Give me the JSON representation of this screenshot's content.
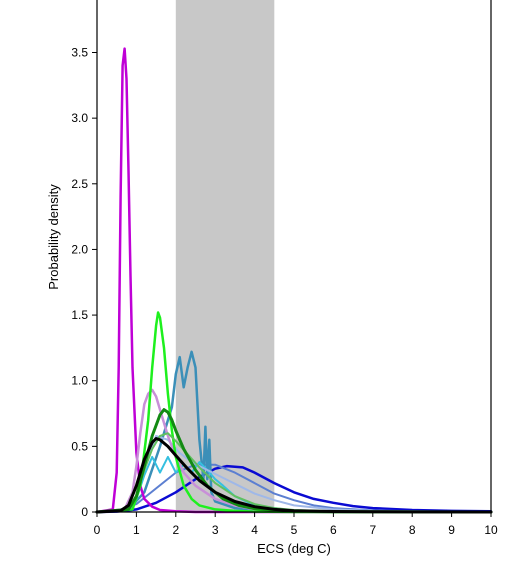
{
  "chart_data": {
    "type": "line",
    "title": "",
    "xlabel": "ECS (deg C)",
    "ylabel": "Probability density",
    "xlim": [
      0,
      10
    ],
    "ylim": [
      0,
      3.9
    ],
    "xticks": [
      "0",
      "1",
      "2",
      "3",
      "4",
      "5",
      "6",
      "7",
      "8",
      "9",
      "10"
    ],
    "yticks": [
      "0",
      "0.5",
      "1.0",
      "1.5",
      "2.0",
      "2.5",
      "3.0",
      "3.5"
    ],
    "grid": false,
    "legend": "none",
    "shaded_range": {
      "x0": 2.0,
      "x1": 4.5,
      "color": "#c8c8c8"
    },
    "series": [
      {
        "color": "#0a0ad2",
        "width": 2.5,
        "x": [
          0,
          0.5,
          1,
          1.5,
          2,
          2.5,
          3,
          3.3,
          3.7,
          4,
          4.5,
          5,
          5.5,
          6,
          6.5,
          7,
          8,
          9,
          10
        ],
        "y": [
          0,
          0.003,
          0.02,
          0.07,
          0.15,
          0.25,
          0.33,
          0.35,
          0.34,
          0.3,
          0.22,
          0.15,
          0.1,
          0.07,
          0.045,
          0.03,
          0.015,
          0.008,
          0.005
        ]
      },
      {
        "color": "#5c7fd1",
        "width": 2,
        "x": [
          0,
          0.5,
          1,
          1.5,
          2,
          2.5,
          3,
          3.5,
          4,
          4.5,
          5,
          5.5,
          6,
          7,
          8,
          9,
          10
        ],
        "y": [
          0,
          0.01,
          0.06,
          0.18,
          0.3,
          0.36,
          0.36,
          0.3,
          0.22,
          0.14,
          0.09,
          0.05,
          0.03,
          0.012,
          0.005,
          0.002,
          0.001
        ]
      },
      {
        "color": "#3b8fb8",
        "width": 2.5,
        "x": [
          0,
          0.8,
          1.2,
          1.6,
          1.9,
          2.0,
          2.1,
          2.2,
          2.3,
          2.4,
          2.5,
          2.6,
          2.7,
          2.75,
          2.8,
          2.85,
          2.9,
          3.0,
          3.5,
          4,
          5,
          6,
          10
        ],
        "y": [
          0,
          0.02,
          0.15,
          0.5,
          0.8,
          1.05,
          1.18,
          0.95,
          1.1,
          1.22,
          1.1,
          0.55,
          0.25,
          0.65,
          0.25,
          0.55,
          0.15,
          0.08,
          0.03,
          0.015,
          0.005,
          0.002,
          0
        ]
      },
      {
        "color": "#35c0e0",
        "width": 2,
        "x": [
          0,
          0.8,
          1.0,
          1.2,
          1.4,
          1.6,
          1.8,
          2.0,
          2.2,
          2.4,
          2.6,
          2.8,
          3.0,
          3.2,
          3.5,
          4,
          5,
          6,
          10
        ],
        "y": [
          0,
          0.02,
          0.1,
          0.28,
          0.42,
          0.3,
          0.42,
          0.3,
          0.36,
          0.3,
          0.38,
          0.32,
          0.25,
          0.2,
          0.12,
          0.05,
          0.01,
          0.003,
          0
        ]
      },
      {
        "color": "#9fb8e8",
        "width": 2,
        "x": [
          0,
          0.8,
          1.0,
          1.2,
          1.5,
          1.8,
          2.1,
          2.4,
          2.8,
          3.2,
          3.6,
          4,
          4.5,
          5,
          6,
          7,
          10
        ],
        "y": [
          0,
          0.02,
          0.12,
          0.35,
          0.58,
          0.55,
          0.45,
          0.38,
          0.32,
          0.26,
          0.2,
          0.14,
          0.09,
          0.05,
          0.02,
          0.008,
          0
        ]
      },
      {
        "color": "#bf00d6",
        "width": 2.5,
        "x": [
          0,
          0.4,
          0.5,
          0.55,
          0.6,
          0.65,
          0.7,
          0.75,
          0.8,
          0.85,
          0.9,
          1.0,
          1.1,
          1.2,
          1.4,
          1.6,
          2.0,
          2.5,
          10
        ],
        "y": [
          0,
          0.02,
          0.3,
          1.1,
          2.4,
          3.4,
          3.53,
          3.3,
          2.6,
          1.8,
          1.1,
          0.45,
          0.2,
          0.1,
          0.04,
          0.015,
          0.005,
          0,
          0
        ]
      },
      {
        "color": "#c890d8",
        "width": 2.5,
        "x": [
          0,
          0.7,
          0.9,
          1.0,
          1.1,
          1.2,
          1.3,
          1.4,
          1.5,
          1.6,
          1.8,
          2.0,
          2.2,
          2.5,
          3,
          3.5,
          4,
          5,
          10
        ],
        "y": [
          0,
          0.02,
          0.15,
          0.35,
          0.6,
          0.82,
          0.9,
          0.93,
          0.88,
          0.78,
          0.58,
          0.42,
          0.3,
          0.2,
          0.1,
          0.05,
          0.02,
          0.005,
          0
        ]
      },
      {
        "color": "#1ef01e",
        "width": 2.5,
        "x": [
          0,
          0.9,
          1.1,
          1.3,
          1.4,
          1.5,
          1.55,
          1.6,
          1.7,
          1.8,
          1.9,
          2.0,
          2.2,
          2.4,
          2.6,
          3.0,
          3.5,
          4,
          5,
          10
        ],
        "y": [
          0,
          0.02,
          0.2,
          0.7,
          1.1,
          1.42,
          1.52,
          1.48,
          1.25,
          0.9,
          0.62,
          0.42,
          0.2,
          0.1,
          0.05,
          0.02,
          0.008,
          0.003,
          0,
          0
        ]
      },
      {
        "color": "#60c060",
        "width": 2,
        "x": [
          0,
          0.8,
          1.0,
          1.2,
          1.4,
          1.6,
          1.8,
          2.0,
          2.3,
          2.6,
          3.0,
          3.5,
          4,
          4.5,
          5,
          6,
          10
        ],
        "y": [
          0,
          0.02,
          0.12,
          0.32,
          0.48,
          0.58,
          0.6,
          0.54,
          0.44,
          0.34,
          0.22,
          0.12,
          0.06,
          0.03,
          0.015,
          0.005,
          0
        ]
      },
      {
        "color": "#138a13",
        "width": 3,
        "x": [
          0,
          0.8,
          1.0,
          1.2,
          1.4,
          1.6,
          1.7,
          1.8,
          1.9,
          2.0,
          2.2,
          2.5,
          2.8,
          3.2,
          3.6,
          4,
          4.5,
          5,
          6,
          10
        ],
        "y": [
          0,
          0.02,
          0.12,
          0.35,
          0.58,
          0.74,
          0.78,
          0.76,
          0.7,
          0.62,
          0.48,
          0.32,
          0.2,
          0.1,
          0.05,
          0.025,
          0.012,
          0.006,
          0.002,
          0
        ]
      },
      {
        "color": "#000000",
        "width": 3,
        "x": [
          0,
          0.6,
          0.8,
          1.0,
          1.2,
          1.4,
          1.5,
          1.6,
          1.8,
          2.0,
          2.3,
          2.6,
          3.0,
          3.5,
          4,
          4.5,
          5,
          6,
          7,
          8,
          10
        ],
        "y": [
          0,
          0.01,
          0.05,
          0.2,
          0.4,
          0.53,
          0.56,
          0.55,
          0.5,
          0.43,
          0.33,
          0.24,
          0.15,
          0.08,
          0.04,
          0.02,
          0.01,
          0.004,
          0.002,
          0.001,
          0
        ]
      }
    ]
  }
}
